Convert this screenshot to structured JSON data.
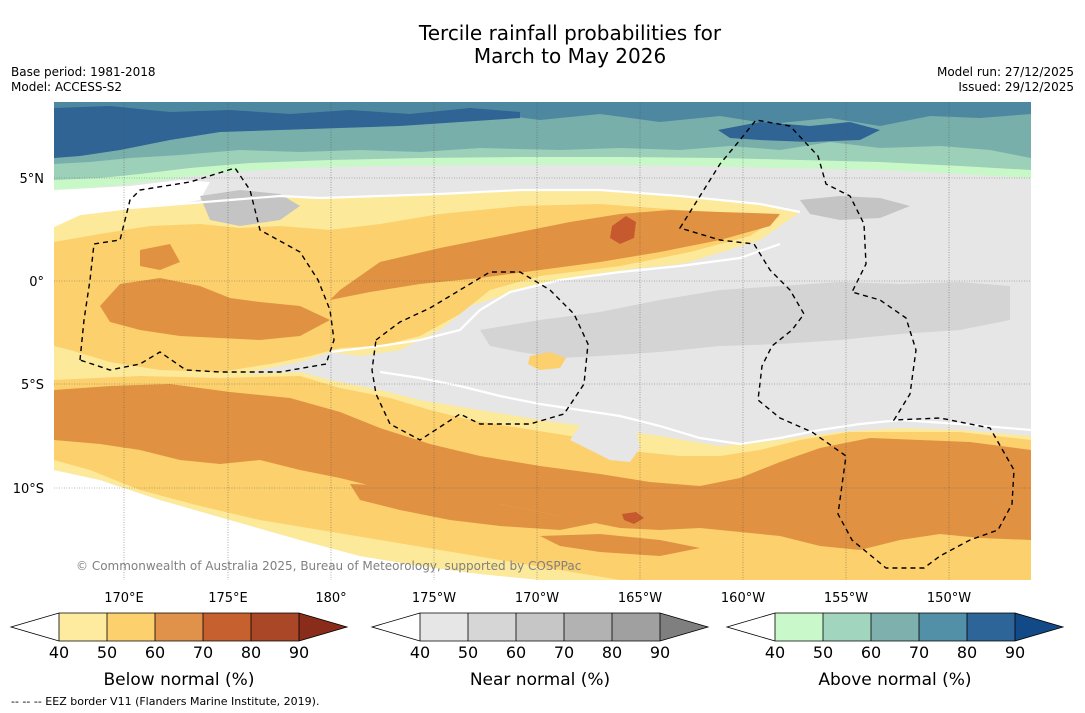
{
  "title": {
    "line1": "Tercile rainfall probabilities for",
    "line2": "March to May 2026"
  },
  "meta": {
    "base_period": "Base period: 1981-2018",
    "model": "Model: ACCESS-S2",
    "model_run": "Model run: 27/12/2025",
    "issued": "Issued: 29/12/2025"
  },
  "map": {
    "lat_labels": [
      "5°N",
      "0°",
      "5°S",
      "10°S"
    ],
    "lon_labels": [
      "170°E",
      "175°E",
      "180°",
      "175°W",
      "170°W",
      "165°W",
      "160°W",
      "155°W",
      "150°W"
    ],
    "credit": "© Commonwealth of Australia 2025, Bureau of Meteorology, supported by COSPPac",
    "colors": {
      "no_signal": "#ffffff",
      "below_40": "#fde99a",
      "below_50": "#fcd06c",
      "below_60": "#e09242",
      "below_70": "#c65a2e",
      "near": "#e6e6e6",
      "near_50": "#d4d4d4",
      "near_60": "#c4c4c4",
      "above_40": "#c8f8c8",
      "above_50": "#9dd0b8",
      "above_60": "#78afab",
      "above_70": "#4e87a0",
      "above_80": "#2f6494"
    }
  },
  "colorbars": [
    {
      "title": "Below normal (%)",
      "ticks": [
        "40",
        "50",
        "60",
        "70",
        "80",
        "90"
      ],
      "colors": [
        "#ffffff",
        "#ffeba0",
        "#fcd06c",
        "#e0924a",
        "#c6612f",
        "#a94726",
        "#8a2c1a"
      ]
    },
    {
      "title": "Near normal (%)",
      "ticks": [
        "40",
        "50",
        "60",
        "70",
        "80",
        "90"
      ],
      "colors": [
        "#ffffff",
        "#e6e6e6",
        "#d6d6d6",
        "#c6c6c6",
        "#b2b2b2",
        "#a0a0a0",
        "#7f7f7f"
      ]
    },
    {
      "title": "Above normal (%)",
      "ticks": [
        "40",
        "50",
        "60",
        "70",
        "80",
        "90"
      ],
      "colors": [
        "#ffffff",
        "#c9f9cb",
        "#a1d5bd",
        "#7eb1ad",
        "#5190a6",
        "#2e6598",
        "#124a87"
      ]
    }
  ],
  "footnote": "-- -- -- EEZ border V11 (Flanders Marine Institute, 2019)."
}
